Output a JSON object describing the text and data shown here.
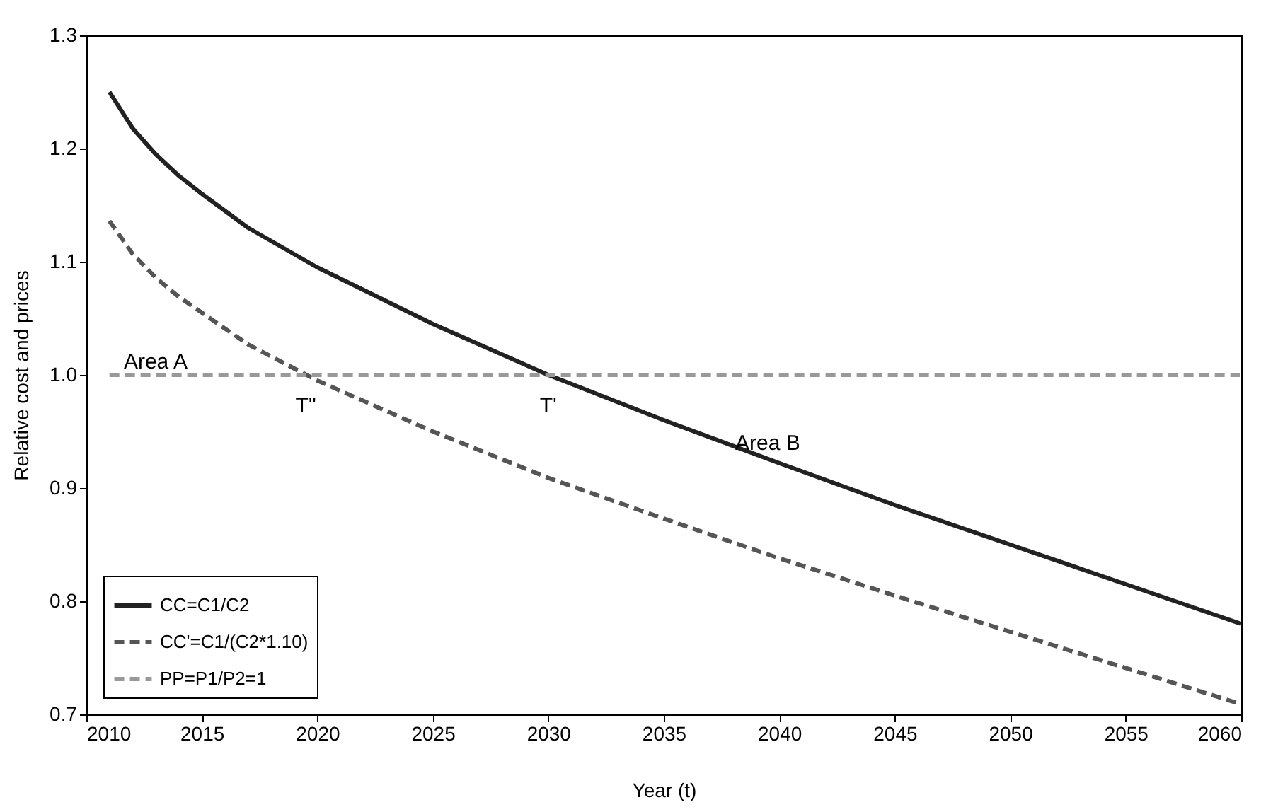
{
  "chart_data": {
    "type": "line",
    "xlabel": "Year (t)",
    "ylabel": "Relative cost and prices",
    "xlim": [
      2010,
      2060
    ],
    "xticks": [
      2010,
      2015,
      2020,
      2025,
      2030,
      2035,
      2040,
      2045,
      2050,
      2055,
      2060
    ],
    "ylim": [
      0.7,
      1.3
    ],
    "yticks": [
      0.7,
      0.8,
      0.9,
      {
        "value": 1.0,
        "label": "1.0"
      },
      1.1,
      1.2,
      1.3
    ],
    "grid": false,
    "legend": "bottom left",
    "marker": "none",
    "series": [
      {
        "name": "CC=C1/C2",
        "color": "#222222",
        "line_style": "solid",
        "x": [
          2011,
          2012,
          2013,
          2014,
          2015,
          2017,
          2020,
          2025,
          2030,
          2035,
          2040,
          2045,
          2050,
          2055,
          2060
        ],
        "values": [
          1.25,
          1.218,
          1.195,
          1.176,
          1.16,
          1.13,
          1.095,
          1.045,
          1.0,
          0.96,
          0.922,
          0.885,
          0.85,
          0.815,
          0.78
        ]
      },
      {
        "name": "CC'=C1/(C2*1.10)",
        "color": "#555555",
        "line_style": "dashed",
        "x": [
          2011,
          2012,
          2013,
          2014,
          2015,
          2017,
          2020,
          2025,
          2030,
          2035,
          2040,
          2045,
          2050,
          2055,
          2060
        ],
        "values": [
          1.136,
          1.107,
          1.086,
          1.069,
          1.055,
          1.027,
          0.995,
          0.95,
          0.909,
          0.873,
          0.838,
          0.805,
          0.773,
          0.741,
          0.709
        ]
      },
      {
        "name": "PP=P1/P2=1",
        "color": "#999999",
        "line_style": "dashed",
        "x": [
          2011,
          2060
        ],
        "values": [
          1.0,
          1.0
        ]
      }
    ],
    "annotations": [
      "Area A",
      "T\"",
      "T'",
      "Area B"
    ]
  }
}
